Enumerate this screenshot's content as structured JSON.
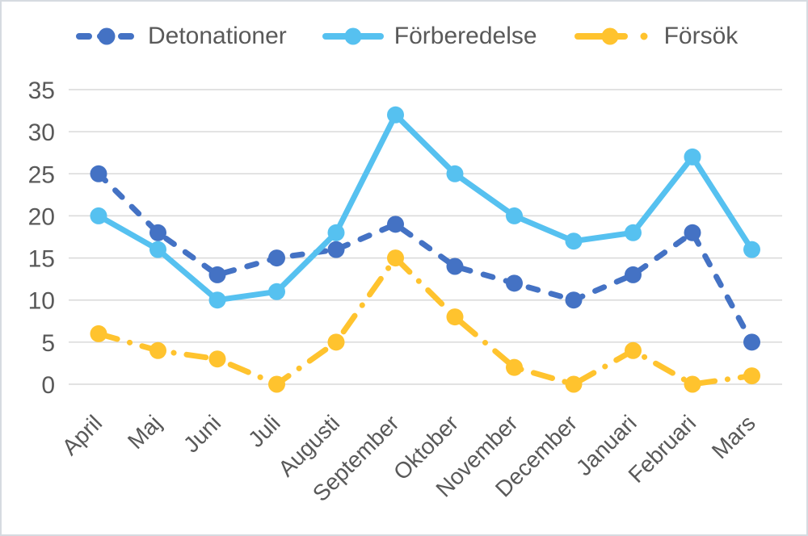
{
  "chart_data": {
    "type": "line",
    "title": "",
    "xlabel": "",
    "ylabel": "",
    "categories": [
      "April",
      "Maj",
      "Juni",
      "Juli",
      "Augusti",
      "September",
      "Oktober",
      "November",
      "December",
      "Januari",
      "Februari",
      "Mars"
    ],
    "series": [
      {
        "name": "Detonationer",
        "values": [
          25,
          18,
          13,
          15,
          16,
          19,
          14,
          12,
          10,
          13,
          18,
          5
        ],
        "color": "#4472C4",
        "line_style": "dashed",
        "marker": "circle"
      },
      {
        "name": "Förberedelse",
        "values": [
          20,
          16,
          10,
          11,
          18,
          32,
          25,
          20,
          17,
          18,
          27,
          16
        ],
        "color": "#56C1F0",
        "line_style": "solid",
        "marker": "circle"
      },
      {
        "name": "Försök",
        "values": [
          6,
          4,
          3,
          0,
          5,
          15,
          8,
          2,
          0,
          4,
          0,
          1
        ],
        "color": "#FFC32E",
        "line_style": "dash-dot",
        "marker": "circle"
      }
    ],
    "ylim": [
      0,
      35
    ],
    "yticks": [
      0,
      5,
      10,
      15,
      20,
      25,
      30,
      35
    ],
    "grid": true,
    "legend_position": "top",
    "x_label_rotation_deg": 45
  },
  "colors": {
    "text": "#595959",
    "gridline": "#D9D9D9",
    "border": "#D6DBE1",
    "background": "#FFFFFF"
  }
}
